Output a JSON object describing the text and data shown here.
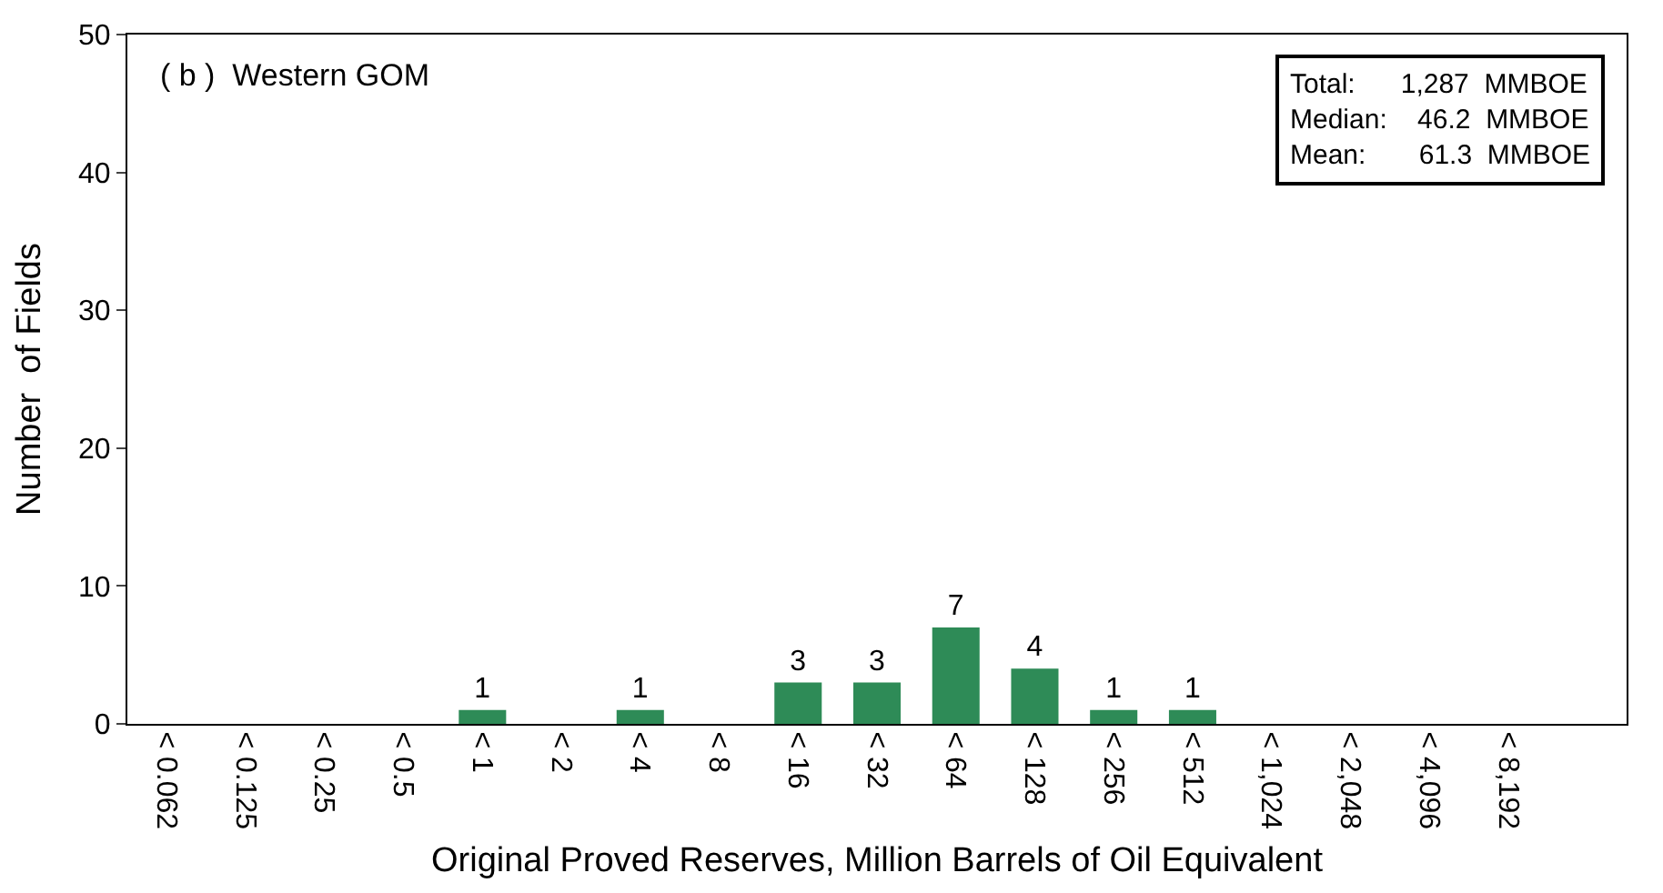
{
  "chart_data": {
    "type": "bar",
    "categories": [
      "< 0.062",
      "< 0.125",
      "< 0.25",
      "< 0.5",
      "< 1",
      "< 2",
      "< 4",
      "< 8",
      "< 16",
      "< 32",
      "< 64",
      "< 128",
      "< 256",
      "< 512",
      "< 1,024",
      "< 2,048",
      "< 4,096",
      "< 8,192"
    ],
    "values": [
      0,
      0,
      0,
      0,
      1,
      0,
      1,
      0,
      3,
      3,
      7,
      4,
      1,
      1,
      0,
      0,
      0,
      0
    ],
    "value_labels": [
      null,
      null,
      null,
      null,
      "1",
      null,
      "1",
      null,
      "3",
      "3",
      "7",
      "4",
      "1",
      "1",
      null,
      null,
      null,
      null
    ],
    "color": "#2e8b57",
    "xlabel": "Original Proved Reserves, Million Barrels of Oil Equivalent",
    "ylabel": "Number  of Fields",
    "ylim": [
      0,
      50
    ],
    "yticks": [
      0,
      10,
      20,
      30,
      40,
      50
    ],
    "annotations": [
      "( b )  Western GOM",
      "Total:      1,287  MMBOE",
      "Median:    46.2  MMBOE",
      "Mean:       61.3  MMBOE"
    ]
  }
}
